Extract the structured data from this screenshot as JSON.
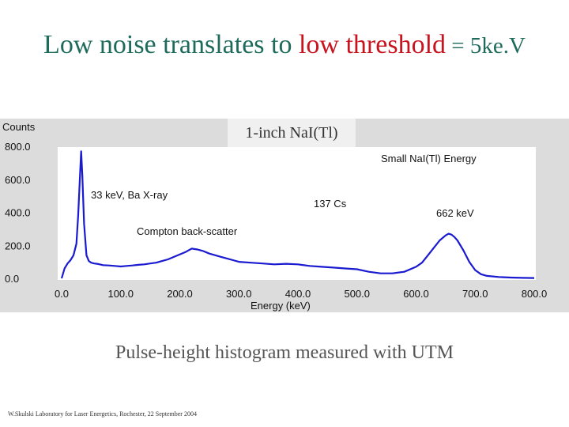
{
  "slide": {
    "title_part1": "Low noise translates to ",
    "title_highlight": "low threshold",
    "title_eq": " = 5ke.V",
    "caption": "Pulse-height histogram measured with UTM",
    "footer": "W.Skulski   Laboratory for Laser Energetics,  Rochester, 22 September 2004",
    "colors": {
      "title": "#1e6b5c",
      "highlight": "#c8141e",
      "trace": "#1a1ad0",
      "panel": "#dcdcdc"
    }
  },
  "chart_data": {
    "type": "line",
    "inset_title": "1-inch NaI(Tl)",
    "legend": "Small NaI(Tl) Energy",
    "ylabel": "Counts",
    "xlabel": "Energy (keV)",
    "xlim": [
      0,
      800
    ],
    "ylim": [
      0,
      800
    ],
    "xticks": [
      "0.0",
      "100.0",
      "200.0",
      "300.0",
      "400.0",
      "500.0",
      "600.0",
      "700.0",
      "800.0"
    ],
    "yticks": [
      "0.0",
      "200.0",
      "400.0",
      "600.0",
      "800.0"
    ],
    "annotations": {
      "peak1": "33 keV, Ba X-ray",
      "compton": "Compton back-scatter",
      "source": "137 Cs",
      "peak2": "662 keV"
    },
    "series": [
      {
        "x": [
          0,
          5,
          10,
          15,
          20,
          25,
          28,
          31,
          33,
          35,
          38,
          42,
          46,
          50,
          55,
          60,
          70,
          80,
          90,
          100,
          110,
          120,
          130,
          140,
          150,
          160,
          170,
          180,
          190,
          200,
          210,
          220,
          230,
          240,
          250,
          260,
          270,
          280,
          290,
          300,
          320,
          340,
          360,
          380,
          400,
          420,
          440,
          460,
          480,
          500,
          520,
          540,
          560,
          580,
          600,
          610,
          620,
          630,
          640,
          650,
          655,
          660,
          665,
          670,
          680,
          690,
          700,
          710,
          720,
          740,
          760,
          780,
          800
        ],
        "y": [
          0,
          60,
          90,
          110,
          140,
          210,
          380,
          620,
          770,
          620,
          330,
          140,
          105,
          95,
          90,
          88,
          80,
          78,
          75,
          72,
          75,
          78,
          82,
          85,
          90,
          95,
          105,
          115,
          130,
          145,
          160,
          180,
          175,
          165,
          150,
          140,
          130,
          120,
          110,
          100,
          95,
          90,
          85,
          88,
          85,
          75,
          70,
          65,
          60,
          55,
          40,
          30,
          30,
          40,
          70,
          95,
          140,
          185,
          230,
          260,
          270,
          265,
          250,
          230,
          170,
          100,
          50,
          25,
          15,
          8,
          5,
          3,
          2
        ]
      }
    ]
  }
}
